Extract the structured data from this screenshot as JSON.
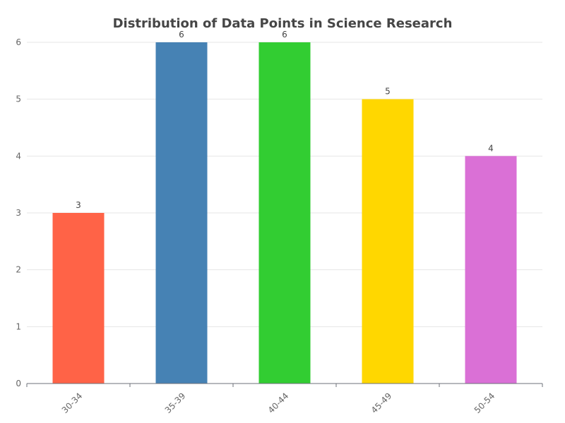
{
  "chart_data": {
    "type": "bar",
    "title": "Distribution of Data Points in Science Research",
    "categories": [
      "30-34",
      "35-39",
      "40-44",
      "45-49",
      "50-54"
    ],
    "values": [
      3,
      6,
      6,
      5,
      4
    ],
    "colors": [
      "#ff6347",
      "#4682b4",
      "#32cd32",
      "#ffd700",
      "#da70d6"
    ],
    "ylim": [
      0,
      6
    ],
    "yticks": [
      0,
      1,
      2,
      3,
      4,
      5,
      6
    ],
    "grid": true,
    "data_labels": true
  }
}
